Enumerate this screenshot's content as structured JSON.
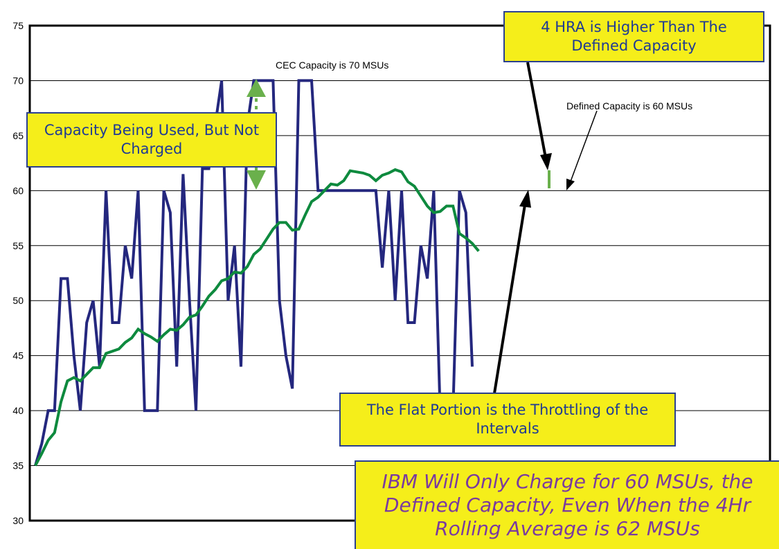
{
  "chart_data": {
    "type": "line",
    "title": "",
    "xlabel": "",
    "ylabel": "",
    "ylim": [
      30,
      75
    ],
    "yticks": [
      "30",
      "35",
      "40",
      "45",
      "50",
      "55",
      "60",
      "65",
      "70",
      "75"
    ],
    "grid": "horizontal",
    "series": [
      {
        "color": "#24277e",
        "values": [
          35,
          37,
          40,
          40,
          52,
          52,
          45,
          40,
          48,
          50,
          44,
          60,
          48,
          48,
          55,
          52,
          60,
          40,
          40,
          40,
          60,
          58,
          44,
          61.5,
          50,
          40,
          62,
          62,
          66,
          70,
          50,
          55,
          44,
          66,
          70,
          70,
          70,
          70,
          50,
          45,
          42,
          70,
          70,
          70,
          60,
          60,
          60,
          60,
          60,
          60,
          60,
          60,
          60,
          60,
          53,
          60,
          50,
          60,
          48,
          48,
          55,
          52,
          60,
          40,
          40,
          40,
          60,
          58,
          44
        ]
      },
      {
        "color": "#0e8a3e",
        "values": [
          35,
          36.1,
          37.3,
          38,
          40.8,
          42.7,
          43,
          42.7,
          43.3,
          43.9,
          43.9,
          45.2,
          45.4,
          45.6,
          46.2,
          46.6,
          47.4,
          47,
          46.7,
          46.3,
          46.9,
          47.4,
          47.3,
          47.8,
          48.5,
          48.7,
          49.5,
          50.4,
          51,
          51.8,
          52,
          52.6,
          52.5,
          53.1,
          54.2,
          54.7,
          55.6,
          56.5,
          57.1,
          57.1,
          56.4,
          56.5,
          57.8,
          59,
          59.4,
          60,
          60.6,
          60.5,
          60.9,
          61.8,
          61.7,
          61.6,
          61.4,
          60.9,
          61.4,
          61.6,
          61.9,
          61.7,
          60.8,
          60.4,
          59.5,
          58.6,
          58,
          58.1,
          58.6,
          58.6,
          56.1,
          55.7,
          55.2,
          54.5
        ]
      }
    ]
  },
  "notes": {
    "cec_capacity": "CEC Capacity is 70 MSUs",
    "defined_capacity": "Defined Capacity is 60 MSUs"
  },
  "callouts": {
    "hra_higher": "4 HRA is Higher Than The Defined Capacity",
    "capacity_used": "Capacity Being Used, But Not Charged",
    "flat_portion": "The Flat Portion is the Throttling of the Intervals",
    "ibm_charge": "IBM Will Only Charge for 60 MSUs, the Defined Capacity, Even When the 4Hr Rolling Average is 62 MSUs"
  },
  "colors": {
    "callout_fill": "#f5ee1a",
    "callout_border": "#2a3f8f",
    "arrow_green": "#6ab04c"
  }
}
